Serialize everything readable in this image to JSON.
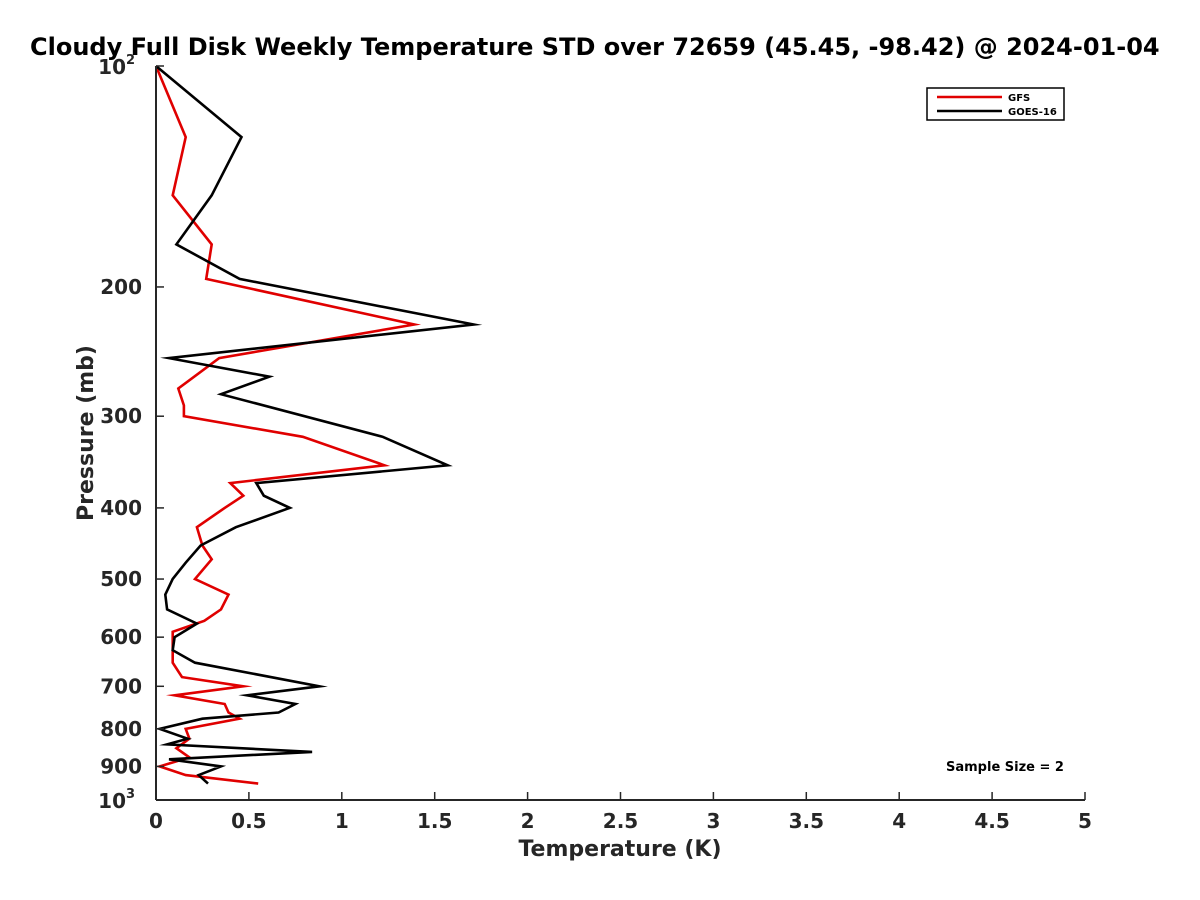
{
  "chart_data": {
    "type": "line",
    "title": "Cloudy Full Disk Weekly Temperature STD over 72659 (45.45, -98.42) @ 2024-01-04",
    "xlabel": "Temperature (K)",
    "ylabel": "Pressure (mb)",
    "xlim": [
      0,
      5
    ],
    "ylim": [
      100,
      1000
    ],
    "yscale": "log",
    "yreversed": true,
    "grid": false,
    "legend_position": "top-right",
    "x_ticks": [
      "0",
      "0.5",
      "1",
      "1.5",
      "2",
      "2.5",
      "3",
      "3.5",
      "4",
      "4.5",
      "5"
    ],
    "y_ticks": [
      {
        "value": 100,
        "base": "10",
        "exp": "2",
        "label": ""
      },
      {
        "value": 200,
        "base": "",
        "exp": "",
        "label": "200"
      },
      {
        "value": 300,
        "base": "",
        "exp": "",
        "label": "300"
      },
      {
        "value": 400,
        "base": "",
        "exp": "",
        "label": "400"
      },
      {
        "value": 500,
        "base": "",
        "exp": "",
        "label": "500"
      },
      {
        "value": 600,
        "base": "",
        "exp": "",
        "label": "600"
      },
      {
        "value": 700,
        "base": "",
        "exp": "",
        "label": "700"
      },
      {
        "value": 800,
        "base": "",
        "exp": "",
        "label": "800"
      },
      {
        "value": 900,
        "base": "",
        "exp": "",
        "label": "900"
      },
      {
        "value": 1000,
        "base": "10",
        "exp": "3",
        "label": ""
      }
    ],
    "series": [
      {
        "name": "GFS",
        "color": "#e00000",
        "points": [
          [
            0.0,
            100
          ],
          [
            0.16,
            125
          ],
          [
            0.09,
            150
          ],
          [
            0.3,
            175
          ],
          [
            0.27,
            195
          ],
          [
            1.39,
            225
          ],
          [
            0.34,
            250
          ],
          [
            0.12,
            275
          ],
          [
            0.15,
            290
          ],
          [
            0.15,
            300
          ],
          [
            0.79,
            320
          ],
          [
            1.23,
            350
          ],
          [
            0.4,
            370
          ],
          [
            0.47,
            385
          ],
          [
            0.37,
            400
          ],
          [
            0.22,
            425
          ],
          [
            0.25,
            450
          ],
          [
            0.3,
            470
          ],
          [
            0.21,
            500
          ],
          [
            0.39,
            525
          ],
          [
            0.35,
            550
          ],
          [
            0.26,
            570
          ],
          [
            0.09,
            590
          ],
          [
            0.09,
            610
          ],
          [
            0.09,
            650
          ],
          [
            0.14,
            680
          ],
          [
            0.47,
            700
          ],
          [
            0.1,
            720
          ],
          [
            0.37,
            740
          ],
          [
            0.39,
            760
          ],
          [
            0.45,
            775
          ],
          [
            0.16,
            800
          ],
          [
            0.18,
            825
          ],
          [
            0.11,
            850
          ],
          [
            0.18,
            875
          ],
          [
            0.02,
            900
          ],
          [
            0.16,
            925
          ],
          [
            0.55,
            950
          ]
        ]
      },
      {
        "name": "GOES-16",
        "color": "#000000",
        "points": [
          [
            0.0,
            100
          ],
          [
            0.46,
            125
          ],
          [
            0.3,
            150
          ],
          [
            0.11,
            175
          ],
          [
            0.45,
            195
          ],
          [
            1.71,
            225
          ],
          [
            0.07,
            250
          ],
          [
            0.61,
            265
          ],
          [
            0.35,
            280
          ],
          [
            1.22,
            320
          ],
          [
            1.57,
            350
          ],
          [
            0.54,
            370
          ],
          [
            0.58,
            385
          ],
          [
            0.72,
            400
          ],
          [
            0.43,
            425
          ],
          [
            0.24,
            450
          ],
          [
            0.16,
            475
          ],
          [
            0.09,
            500
          ],
          [
            0.05,
            525
          ],
          [
            0.06,
            550
          ],
          [
            0.22,
            575
          ],
          [
            0.1,
            600
          ],
          [
            0.09,
            625
          ],
          [
            0.21,
            650
          ],
          [
            0.88,
            700
          ],
          [
            0.49,
            720
          ],
          [
            0.75,
            740
          ],
          [
            0.66,
            760
          ],
          [
            0.25,
            775
          ],
          [
            0.02,
            800
          ],
          [
            0.17,
            825
          ],
          [
            0.06,
            840
          ],
          [
            0.84,
            860
          ],
          [
            0.07,
            880
          ],
          [
            0.35,
            900
          ],
          [
            0.23,
            925
          ],
          [
            0.28,
            950
          ]
        ]
      }
    ],
    "annotations": [
      {
        "text": "Sample Size = 2"
      }
    ]
  }
}
